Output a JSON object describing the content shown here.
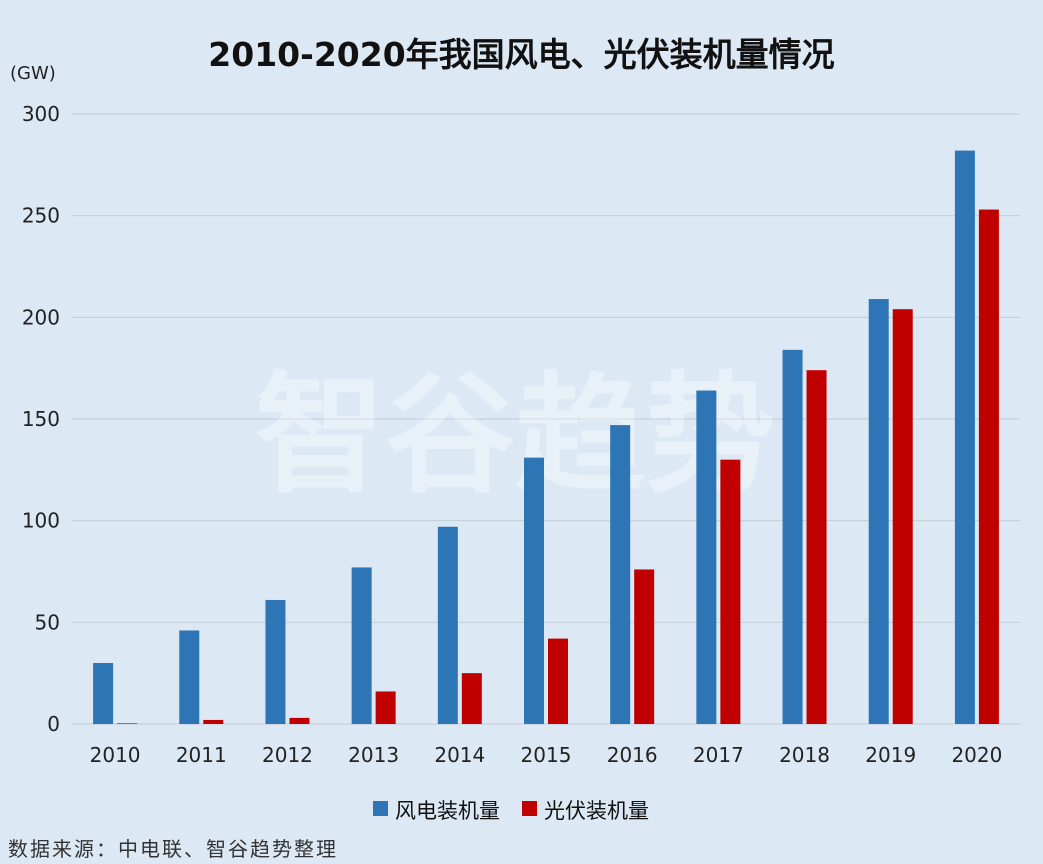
{
  "chart_data": {
    "type": "bar",
    "title": "2010-2020年我国风电、光伏装机量情况",
    "ylabel": "(GW)",
    "xlabel": "",
    "ylim": [
      0,
      300
    ],
    "yticks": [
      0,
      50,
      100,
      150,
      200,
      250,
      300
    ],
    "categories": [
      "2010",
      "2011",
      "2012",
      "2013",
      "2014",
      "2015",
      "2016",
      "2017",
      "2018",
      "2019",
      "2020"
    ],
    "series": [
      {
        "name": "风电装机量",
        "color": "#2e75b6",
        "values": [
          30,
          46,
          61,
          77,
          97,
          131,
          147,
          164,
          184,
          209,
          282
        ]
      },
      {
        "name": "光伏装机量",
        "color": "#c00000",
        "values": [
          0.3,
          2,
          3,
          16,
          25,
          42,
          76,
          130,
          174,
          204,
          253
        ]
      }
    ],
    "grid": true,
    "legend_position": "bottom"
  },
  "watermark": "智谷趋势",
  "source": "数据来源：中电联、智谷趋势整理"
}
